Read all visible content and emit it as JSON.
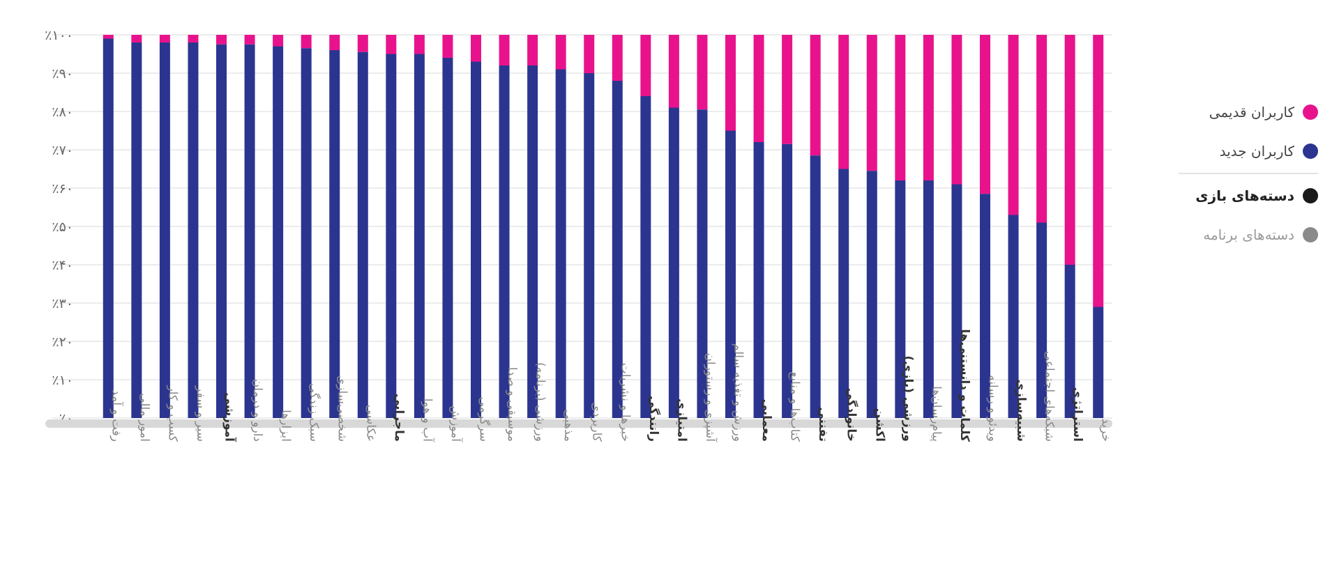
{
  "colors": {
    "old_users": "#e8138c",
    "new_users": "#2b3590",
    "game_categories": "#1a1a1a",
    "app_categories": "#8a8a8a",
    "grid": "#ececec",
    "baseline": "#d8d8d8",
    "tick_text": "#666666",
    "category_text": "#888888"
  },
  "legend": {
    "old_users": "کاربران قدیمی",
    "new_users": "کاربران جدید",
    "game_categories": "دسته‌های بازی",
    "app_categories": "دسته‌های برنامه"
  },
  "chart_data": {
    "type": "bar",
    "stacked": true,
    "normalized": true,
    "ylim": [
      0,
      100
    ],
    "yticks": [
      0,
      10,
      20,
      30,
      40,
      50,
      60,
      70,
      80,
      90,
      100
    ],
    "ytick_labels": [
      "٪۰",
      "٪۱۰",
      "٪۲۰",
      "٪۳۰",
      "٪۴۰",
      "٪۵۰",
      "٪۶۰",
      "٪۷۰",
      "٪۸۰",
      "٪۹۰",
      "٪۱۰۰"
    ],
    "grid": true,
    "legend_position": "right",
    "categories": [
      "رفت و آمد",
      "امور مالی",
      "کسب و کار",
      "سیر و سفر",
      "آموزشی",
      "دارو و درمان",
      "ابزارها",
      "سبک زندگی",
      "شخصی‌سازی",
      "عکاسی",
      "ماجرایی",
      "آب و هوا",
      "آموزش",
      "سرگرمی",
      "موسیقی و صدا",
      "ورزشی (برنامه)",
      "مذهبی",
      "کاربردی",
      "خبرها و نشریات",
      "رانندگی",
      "امتیازی",
      "آشپزی و رستوران",
      "ورزش و تغذیه سالم",
      "معمایی",
      "کتاب‌ها و منابع",
      "تفننی",
      "خانوادگی",
      "اکشن",
      "ورزشی (بازی)",
      "پیام‌رسان‌ها",
      "کلمات و دانستنی‌ها",
      "ویدئو و رسانه",
      "شبیه‌سازی",
      "شبکه‌های اجتماعی",
      "استراتژی",
      "خرید"
    ],
    "category_group": [
      "app",
      "app",
      "app",
      "app",
      "game",
      "app",
      "app",
      "app",
      "app",
      "app",
      "game",
      "app",
      "app",
      "app",
      "app",
      "app",
      "app",
      "app",
      "app",
      "game",
      "game",
      "app",
      "app",
      "game",
      "app",
      "game",
      "game",
      "game",
      "game",
      "app",
      "game",
      "app",
      "game",
      "app",
      "game",
      "app"
    ],
    "series": [
      {
        "name": "کاربران جدید",
        "values": [
          99,
          98,
          98,
          98,
          97.5,
          97.5,
          97,
          96.5,
          96,
          95.5,
          95,
          95,
          94,
          93,
          92,
          92,
          91,
          90,
          88,
          84,
          81,
          80.5,
          75,
          72,
          71.5,
          68.5,
          65,
          64.5,
          62,
          62,
          61,
          58.5,
          53,
          51,
          40,
          29
        ]
      },
      {
        "name": "کاربران قدیمی",
        "values": [
          1,
          2,
          2,
          2,
          2.5,
          2.5,
          3,
          3.5,
          4,
          4.5,
          5,
          5,
          6,
          7,
          8,
          8,
          9,
          10,
          12,
          16,
          19,
          19.5,
          25,
          28,
          28.5,
          31.5,
          35,
          35.5,
          38,
          38,
          39,
          41.5,
          47,
          49,
          60,
          71
        ]
      }
    ]
  }
}
